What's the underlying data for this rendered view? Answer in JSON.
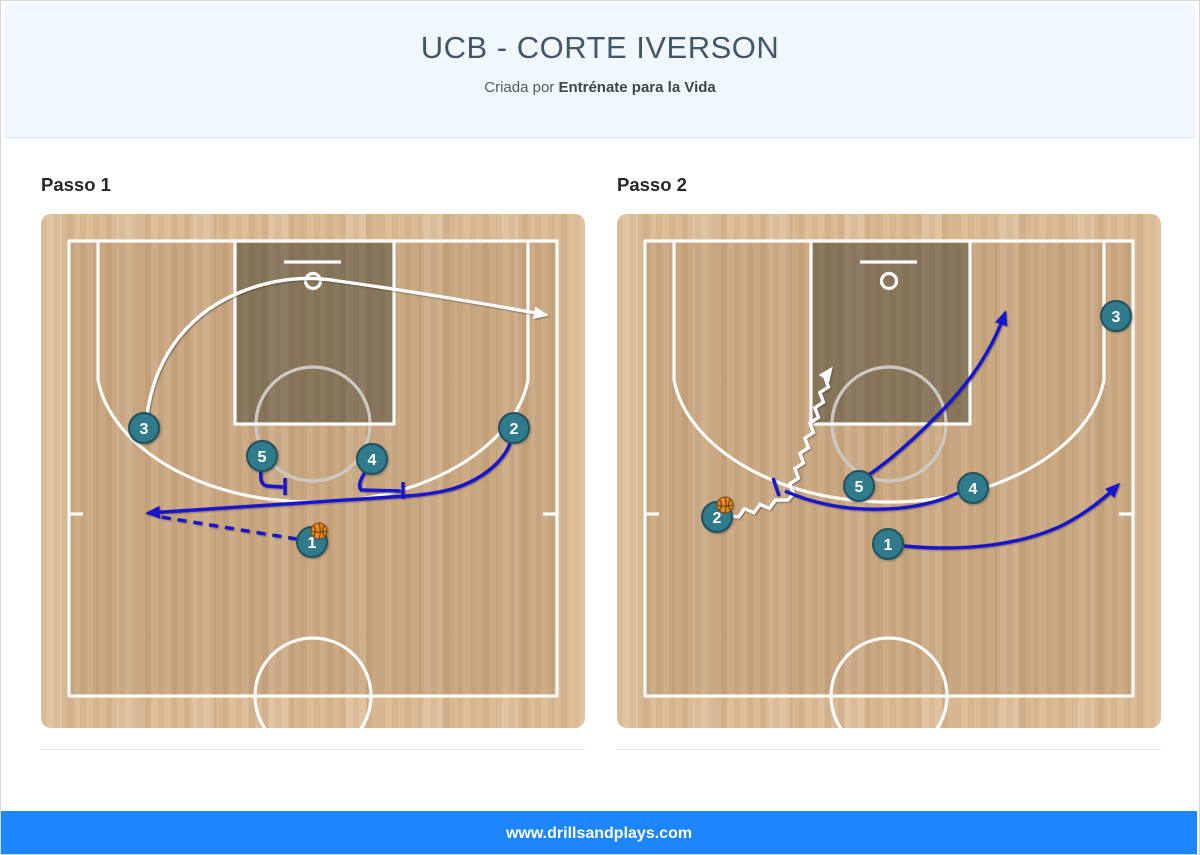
{
  "header": {
    "title": "UCB - CORTE IVERSON",
    "subtitle_prefix": "Criada por ",
    "subtitle_brand": "Entrénate para la Vida"
  },
  "footer": {
    "url": "www.drillsandplays.com"
  },
  "colors": {
    "footer_accent": "#1d86fc",
    "play_line_blue": "#1616d0",
    "play_line_white": "#ffffff",
    "player_fill": "#2f7b8c",
    "court_out_of_bounds": "#debf9a",
    "court_floor": "#cfae88",
    "key_paint": "#8d7b60",
    "ball_orange": "#e78a1e"
  },
  "panels": [
    {
      "heading": "Passo 1",
      "players": [
        {
          "label": "3"
        },
        {
          "label": "5"
        },
        {
          "label": "4"
        },
        {
          "label": "2"
        },
        {
          "label": "1",
          "has_ball": true
        }
      ],
      "actions": [
        {
          "type": "cut",
          "player": "3",
          "style": "white-arrow"
        },
        {
          "type": "cut",
          "player": "2",
          "style": "blue-arrow"
        },
        {
          "type": "screen",
          "player": "5"
        },
        {
          "type": "screen",
          "player": "4"
        },
        {
          "type": "pass",
          "player": "1",
          "style": "blue-dashed"
        }
      ]
    },
    {
      "heading": "Passo 2",
      "players": [
        {
          "label": "3"
        },
        {
          "label": "5"
        },
        {
          "label": "4"
        },
        {
          "label": "1"
        },
        {
          "label": "2",
          "has_ball": true
        }
      ],
      "actions": [
        {
          "type": "dribble",
          "player": "2",
          "style": "white-zigzag"
        },
        {
          "type": "screen",
          "player": "4"
        },
        {
          "type": "cut",
          "player": "5",
          "style": "blue-arrow"
        },
        {
          "type": "cut",
          "player": "1",
          "style": "blue-arrow"
        }
      ]
    }
  ]
}
